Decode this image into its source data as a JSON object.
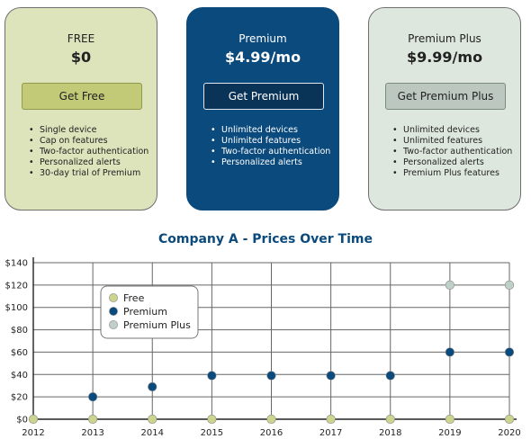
{
  "plans": [
    {
      "name": "FREE",
      "price": "$0",
      "cta": "Get Free",
      "features": [
        "Single device",
        "Cap on features",
        "Two-factor authentication",
        "Personalized alerts",
        "30-day trial of Premium"
      ]
    },
    {
      "name": "Premium",
      "price": "$4.99/mo",
      "cta": "Get Premium",
      "features": [
        "Unlimited devices",
        "Unlimited features",
        "Two-factor authentication",
        "Personalized alerts"
      ]
    },
    {
      "name": "Premium Plus",
      "price": "$9.99/mo",
      "cta": "Get Premium Plus",
      "features": [
        "Unlimited devices",
        "Unlimited features",
        "Two-factor authentication",
        "Personalized alerts",
        "Premium Plus features"
      ]
    }
  ],
  "colors": {
    "free": "#cdd48e",
    "premium": "#0b4a7d",
    "premium_plus": "#bfd0c8",
    "title": "#0b4a7d"
  },
  "chart_data": {
    "type": "scatter",
    "title": "Company A - Prices Over Time",
    "xlabel": "",
    "ylabel": "",
    "x": [
      2012,
      2013,
      2014,
      2015,
      2016,
      2017,
      2018,
      2019,
      2020
    ],
    "x_tick_labels": [
      "2012",
      "2013",
      "2014",
      "2015",
      "2016",
      "2017",
      "2018",
      "2019",
      "2020"
    ],
    "y_tick_labels": [
      "$0",
      "$20",
      "$40",
      "$60",
      "$80",
      "$100",
      "$120",
      "$140"
    ],
    "ylim": [
      0,
      140
    ],
    "grid": true,
    "legend_position": "upper-left",
    "series": [
      {
        "name": "Free",
        "color": "#cdd48e",
        "points": [
          [
            2012,
            0
          ],
          [
            2013,
            0
          ],
          [
            2014,
            0
          ],
          [
            2015,
            0
          ],
          [
            2016,
            0
          ],
          [
            2017,
            0
          ],
          [
            2018,
            0
          ],
          [
            2019,
            0
          ],
          [
            2020,
            0
          ]
        ]
      },
      {
        "name": "Premium",
        "color": "#0b4a7d",
        "points": [
          [
            2013,
            20
          ],
          [
            2014,
            29
          ],
          [
            2015,
            39
          ],
          [
            2016,
            39
          ],
          [
            2017,
            39
          ],
          [
            2018,
            39
          ],
          [
            2019,
            60
          ],
          [
            2020,
            60
          ]
        ]
      },
      {
        "name": "Premium Plus",
        "color": "#bfd0c8",
        "points": [
          [
            2019,
            120
          ],
          [
            2020,
            120
          ]
        ]
      }
    ]
  }
}
